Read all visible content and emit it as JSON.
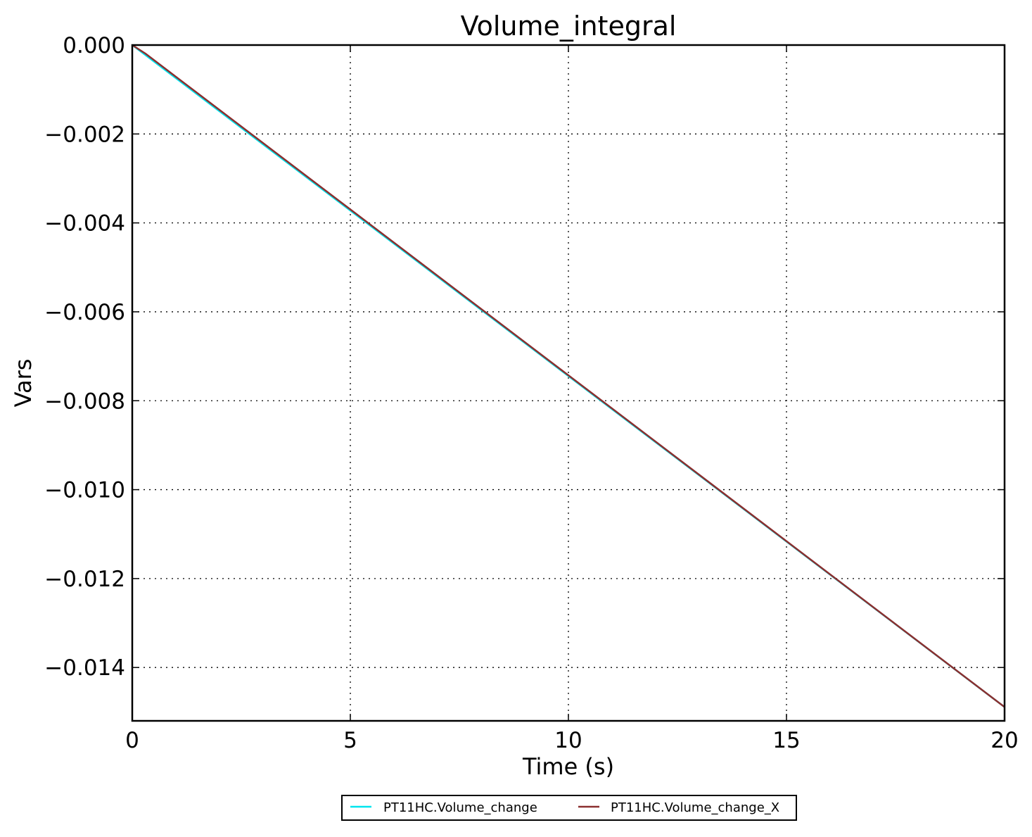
{
  "chart_data": {
    "type": "line",
    "title": "Volume_integral",
    "xlabel": "Time (s)",
    "ylabel": "Vars",
    "xlim": [
      0,
      20
    ],
    "ylim": [
      -0.0152,
      0.0
    ],
    "grid": true,
    "legend_position": "bottom-center",
    "x_ticks": [
      0,
      5,
      10,
      15,
      20
    ],
    "x_tick_labels": [
      "0",
      "5",
      "10",
      "15",
      "20"
    ],
    "y_ticks": [
      0.0,
      -0.002,
      -0.004,
      -0.006,
      -0.008,
      -0.01,
      -0.012,
      -0.014
    ],
    "y_tick_labels": [
      "0.000",
      "−0.002",
      "−0.004",
      "−0.006",
      "−0.008",
      "−0.010",
      "−0.012",
      "−0.014"
    ],
    "series": [
      {
        "name": "PT11HC.Volume_change",
        "color": "#00e5ee",
        "x": [
          0,
          20
        ],
        "y": [
          0.0,
          -0.01489
        ]
      },
      {
        "name": "PT11HC.Volume_change_X",
        "color": "#8b2f2f",
        "x": [
          0,
          0.3,
          20
        ],
        "y": [
          0.0,
          -0.00019,
          -0.01489
        ]
      }
    ]
  }
}
